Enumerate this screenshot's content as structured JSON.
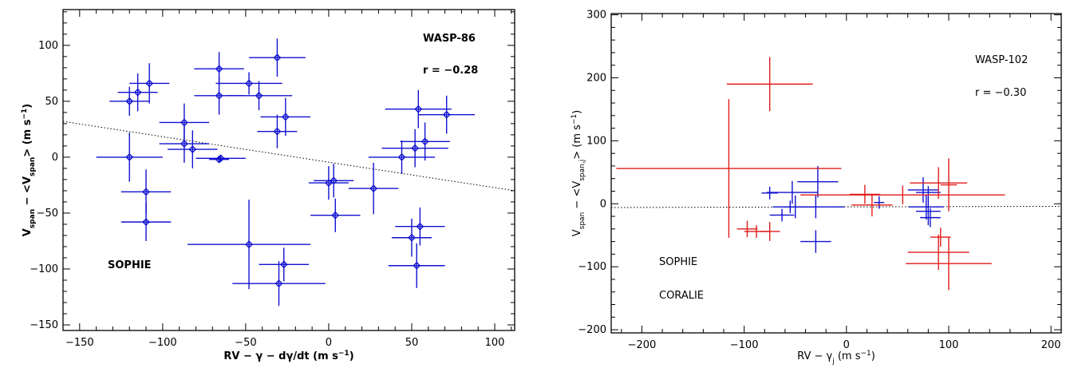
{
  "chart_data": [
    {
      "type": "scatter",
      "panel": "left",
      "xlabel": "RV − γ − dγ/dt (m s⁻¹)",
      "ylabel": "V_span − <V_span> (m s⁻¹)",
      "xlim": [
        -160,
        112
      ],
      "ylim": [
        -155,
        132
      ],
      "xticks": [
        -150,
        -100,
        -50,
        0,
        50,
        100
      ],
      "yticks": [
        -150,
        -100,
        -50,
        0,
        50,
        100
      ],
      "x_tick_labels": [
        "−150",
        "−100",
        "−50",
        "0",
        "50",
        "100"
      ],
      "y_tick_labels": [
        "−150",
        "−100",
        "−50",
        "0",
        "50",
        "100"
      ],
      "annotations": {
        "target": "WASP-86",
        "correlation": "r = −0.28"
      },
      "fit_line": {
        "x": [
          -160,
          112
        ],
        "y": [
          32,
          -30
        ]
      },
      "series": [
        {
          "name": "SOPHIE",
          "color": "#1010d0",
          "marker": "diamond",
          "points": [
            {
              "x": -120,
              "y": 50,
              "xerr": 12,
              "yerr": 13
            },
            {
              "x": -115,
              "y": 58,
              "xerr": 12,
              "yerr": 17
            },
            {
              "x": -108,
              "y": 66,
              "xerr": 12,
              "yerr": 18
            },
            {
              "x": -120,
              "y": 0,
              "xerr": 20,
              "yerr": 22
            },
            {
              "x": -110,
              "y": -31,
              "xerr": 15,
              "yerr": 20
            },
            {
              "x": -110,
              "y": -58,
              "xerr": 15,
              "yerr": 17
            },
            {
              "x": -87,
              "y": 31,
              "xerr": 15,
              "yerr": 17
            },
            {
              "x": -87,
              "y": 12,
              "xerr": 15,
              "yerr": 17
            },
            {
              "x": -82,
              "y": 7,
              "xerr": 15,
              "yerr": 17
            },
            {
              "x": -66,
              "y": 79,
              "xerr": 15,
              "yerr": 15
            },
            {
              "x": -66,
              "y": 55,
              "xerr": 15,
              "yerr": 17
            },
            {
              "x": -65,
              "y": -1,
              "xerr": 15,
              "yerr": 3
            },
            {
              "x": -66,
              "y": -2,
              "xerr": 6,
              "yerr": 3
            },
            {
              "x": -48,
              "y": 66,
              "xerr": 20,
              "yerr": 10
            },
            {
              "x": -42,
              "y": 55,
              "xerr": 20,
              "yerr": 13
            },
            {
              "x": -31,
              "y": 89,
              "xerr": 17,
              "yerr": 17
            },
            {
              "x": -26,
              "y": 36,
              "xerr": 15,
              "yerr": 17
            },
            {
              "x": -31,
              "y": 23,
              "xerr": 12,
              "yerr": 15
            },
            {
              "x": -48,
              "y": -78,
              "xerr": 37,
              "yerr": 40
            },
            {
              "x": -27,
              "y": -96,
              "xerr": 15,
              "yerr": 15
            },
            {
              "x": -30,
              "y": -113,
              "xerr": 28,
              "yerr": 20
            },
            {
              "x": 0,
              "y": -23,
              "xerr": 12,
              "yerr": 15
            },
            {
              "x": 3,
              "y": -21,
              "xerr": 12,
              "yerr": 15
            },
            {
              "x": 4,
              "y": -52,
              "xerr": 15,
              "yerr": 15
            },
            {
              "x": 27,
              "y": -28,
              "xerr": 15,
              "yerr": 23
            },
            {
              "x": 44,
              "y": 0,
              "xerr": 20,
              "yerr": 15
            },
            {
              "x": 52,
              "y": 8,
              "xerr": 20,
              "yerr": 17
            },
            {
              "x": 54,
              "y": 43,
              "xerr": 20,
              "yerr": 17
            },
            {
              "x": 58,
              "y": 14,
              "xerr": 15,
              "yerr": 17
            },
            {
              "x": 71,
              "y": 38,
              "xerr": 17,
              "yerr": 17
            },
            {
              "x": 50,
              "y": -72,
              "xerr": 12,
              "yerr": 17
            },
            {
              "x": 55,
              "y": -62,
              "xerr": 15,
              "yerr": 17
            },
            {
              "x": 53,
              "y": -97,
              "xerr": 17,
              "yerr": 20
            }
          ]
        }
      ],
      "legend_labels": [
        "SOPHIE"
      ]
    },
    {
      "type": "scatter",
      "panel": "right",
      "xlabel": "RV − γ_j (m s⁻¹)",
      "ylabel": "V_span − <V_span,j> (m s⁻¹)",
      "xlim": [
        -230,
        210
      ],
      "ylim": [
        -205,
        302
      ],
      "xticks": [
        -200,
        -100,
        0,
        100,
        200
      ],
      "yticks": [
        -200,
        -100,
        0,
        100,
        200,
        300
      ],
      "x_tick_labels": [
        "−200",
        "−100",
        "0",
        "100",
        "200"
      ],
      "y_tick_labels": [
        "−200",
        "−100",
        "0",
        "100",
        "200",
        "300"
      ],
      "annotations": {
        "target": "WASP-102",
        "correlation": "r = −0.30"
      },
      "fit_line": {
        "x": [
          -230,
          210
        ],
        "y": [
          -6,
          -4
        ]
      },
      "series": [
        {
          "name": "SOPHIE",
          "color": "#1010d0",
          "marker": "cross",
          "points": [
            {
              "x": -75,
              "y": 17,
              "xerr": 8,
              "yerr": 10
            },
            {
              "x": -53,
              "y": 18,
              "xerr": 25,
              "yerr": 18
            },
            {
              "x": -63,
              "y": -18,
              "xerr": 12,
              "yerr": 10
            },
            {
              "x": -55,
              "y": -5,
              "xerr": 5,
              "yerr": 10
            },
            {
              "x": -50,
              "y": -5,
              "xerr": 22,
              "yerr": 18
            },
            {
              "x": -28,
              "y": 35,
              "xerr": 20,
              "yerr": 25
            },
            {
              "x": -30,
              "y": -5,
              "xerr": 28,
              "yerr": 18
            },
            {
              "x": -30,
              "y": -60,
              "xerr": 15,
              "yerr": 18
            },
            {
              "x": 32,
              "y": 2,
              "xerr": 5,
              "yerr": 10
            },
            {
              "x": 75,
              "y": 22,
              "xerr": 15,
              "yerr": 20
            },
            {
              "x": 80,
              "y": 18,
              "xerr": 12,
              "yerr": 10
            },
            {
              "x": 78,
              "y": -5,
              "xerr": 17,
              "yerr": 20
            },
            {
              "x": 80,
              "y": -12,
              "xerr": 12,
              "yerr": 22
            },
            {
              "x": 82,
              "y": -22,
              "xerr": 10,
              "yerr": 15
            }
          ]
        },
        {
          "name": "CORALIE",
          "color": "#e01a1a",
          "marker": "cross",
          "points": [
            {
              "x": -75,
              "y": 190,
              "xerr": 42,
              "yerr": 43
            },
            {
              "x": -115,
              "y": 56,
              "xerr": 110,
              "yerr": 110
            },
            {
              "x": -97,
              "y": -40,
              "xerr": 10,
              "yerr": 13
            },
            {
              "x": -88,
              "y": -44,
              "xerr": 12,
              "yerr": 10
            },
            {
              "x": -75,
              "y": -44,
              "xerr": 10,
              "yerr": 15
            },
            {
              "x": 18,
              "y": 15,
              "xerr": 15,
              "yerr": 15
            },
            {
              "x": 25,
              "y": -2,
              "xerr": 20,
              "yerr": 18
            },
            {
              "x": 55,
              "y": 14,
              "xerr": 100,
              "yerr": 15
            },
            {
              "x": 90,
              "y": 33,
              "xerr": 28,
              "yerr": 25
            },
            {
              "x": 100,
              "y": 30,
              "xerr": 8,
              "yerr": 42
            },
            {
              "x": 92,
              "y": -53,
              "xerr": 10,
              "yerr": 15
            },
            {
              "x": 90,
              "y": -77,
              "xerr": 30,
              "yerr": 28
            },
            {
              "x": 100,
              "y": -95,
              "xerr": 42,
              "yerr": 42
            }
          ]
        }
      ],
      "legend_labels": [
        "SOPHIE",
        "CORALIE"
      ]
    }
  ]
}
